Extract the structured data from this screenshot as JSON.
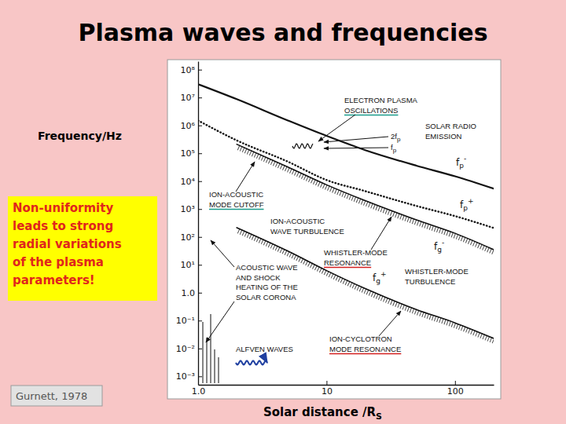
{
  "chart_data": {
    "type": "line",
    "title": "Plasma waves and frequencies",
    "ylabel": "Frequency/Hz",
    "xlabel": "Solar distance /RS",
    "log": true,
    "grid": false,
    "x": [
      1,
      2,
      5,
      10,
      20,
      50,
      100,
      200
    ],
    "xlim": [
      1,
      200
    ],
    "xticks": [
      {
        "value": 1,
        "label": "1.0"
      },
      10,
      100
    ],
    "ylim": [
      0.0005,
      200000000
    ],
    "yticks": [
      {
        "value": 0.001,
        "label": "10⁻³"
      },
      {
        "value": 0.01,
        "label": "10⁻²"
      },
      {
        "value": 0.1,
        "label": "10⁻¹"
      },
      {
        "value": 1,
        "label": "1.0"
      },
      {
        "value": 10,
        "label": "10¹"
      },
      {
        "value": 100,
        "label": "10²"
      },
      {
        "value": 1000,
        "label": "10³"
      },
      {
        "value": 10000,
        "label": "10⁴"
      },
      {
        "value": 100000,
        "label": "10⁵"
      },
      {
        "value": 1000000,
        "label": "10⁶"
      },
      {
        "value": 10000000,
        "label": "10⁷"
      },
      {
        "value": 100000000,
        "label": "10⁸"
      }
    ],
    "series": [
      {
        "name": "fp-",
        "color": "#111111",
        "line_style": "solid",
        "values": [
          30000000,
          8700000,
          1500000,
          420000,
          130000,
          36000,
          15000,
          5400
        ]
      },
      {
        "name": "fp+",
        "color": "#111111",
        "line_style": "dotted",
        "values": [
          1500000,
          290000,
          50000,
          11000,
          4400,
          1300,
          560,
          210
        ]
      },
      {
        "name": "fg-",
        "color": "#111111",
        "line_style": "hatched",
        "values": [
          null,
          210000,
          32000,
          7400,
          2000,
          410,
          135,
          35
        ]
      },
      {
        "name": "fg+",
        "color": "#111111",
        "line_style": "hatched",
        "values": [
          null,
          215,
          31,
          6.2,
          1.4,
          0.25,
          0.083,
          0.023
        ]
      }
    ],
    "annotations": [
      [
        "ELECTRON PLASMA",
        "OSCILLATIONS"
      ],
      [
        "SOLAR RADIO",
        "EMISSION"
      ],
      [
        "2fp"
      ],
      [
        "fp"
      ],
      [
        "ION-ACOUSTIC",
        "MODE CUTOFF"
      ],
      [
        "ION-ACOUSTIC",
        "WAVE TURBULENCE"
      ],
      [
        "WHISTLER-MODE",
        "RESONANCE"
      ],
      [
        "WHISTLER-MODE",
        "TURBULENCE"
      ],
      [
        "ACOUSTIC WAVE",
        "AND SHOCK",
        "HEATING OF THE",
        "SOLAR CORONA"
      ],
      [
        "ALFVEN WAVES"
      ],
      [
        "ION-CYCLOTRON",
        "MODE RESONANCE"
      ]
    ],
    "note": [
      "Non-uniformity",
      "leads to strong",
      "radial variations",
      "of the plasma",
      "parameters!"
    ],
    "source": "Gurnett, 1978"
  }
}
